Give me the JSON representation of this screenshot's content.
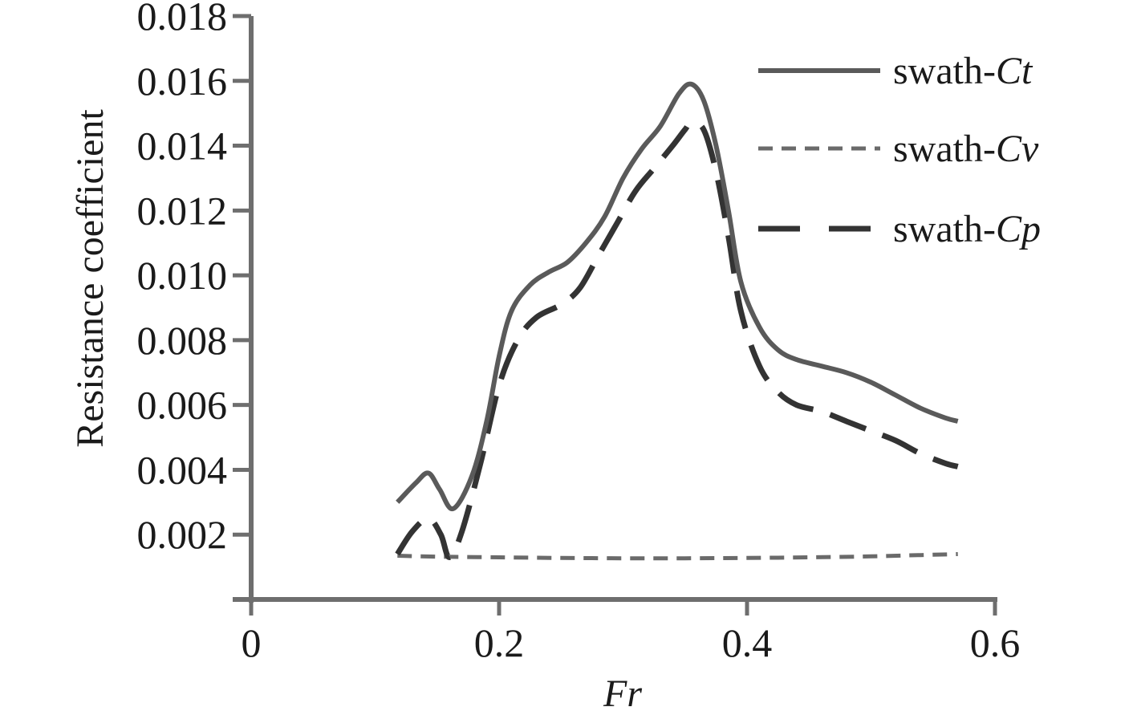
{
  "chart_data": {
    "type": "line",
    "xlabel": "Fr",
    "ylabel": "Resistance coefficient",
    "xlim": [
      0,
      0.6
    ],
    "ylim": [
      0,
      0.018
    ],
    "x_ticks": [
      "0",
      "0.2",
      "0.4",
      "0.6"
    ],
    "y_ticks": [
      "0.002",
      "0.004",
      "0.006",
      "0.008",
      "0.010",
      "0.012",
      "0.014",
      "0.016",
      "0.018"
    ],
    "grid": false,
    "legend_position": "top-right",
    "series": [
      {
        "name": "swath-Ct",
        "name_prefix": "swath-",
        "name_symbol": "Ct",
        "style": "solid",
        "color": "#5a5a5a",
        "x": [
          0.118,
          0.133,
          0.143,
          0.152,
          0.163,
          0.178,
          0.19,
          0.2,
          0.21,
          0.225,
          0.24,
          0.255,
          0.27,
          0.285,
          0.3,
          0.315,
          0.33,
          0.345,
          0.355,
          0.365,
          0.375,
          0.385,
          0.395,
          0.41,
          0.425,
          0.44,
          0.46,
          0.48,
          0.5,
          0.52,
          0.54,
          0.56,
          0.57
        ],
        "y": [
          0.003,
          0.0036,
          0.0039,
          0.0034,
          0.0028,
          0.0038,
          0.0055,
          0.0075,
          0.0089,
          0.0097,
          0.0101,
          0.0104,
          0.011,
          0.0118,
          0.013,
          0.0139,
          0.0146,
          0.0156,
          0.0159,
          0.0154,
          0.014,
          0.012,
          0.0098,
          0.0084,
          0.0077,
          0.0074,
          0.0072,
          0.007,
          0.0067,
          0.0063,
          0.0059,
          0.0056,
          0.0055
        ]
      },
      {
        "name": "swath-Cv",
        "name_prefix": "swath-",
        "name_symbol": "Cv",
        "style": "short-dash",
        "color": "#6a6a6a",
        "x": [
          0.118,
          0.15,
          0.2,
          0.25,
          0.3,
          0.35,
          0.4,
          0.45,
          0.5,
          0.54,
          0.57
        ],
        "y": [
          0.00135,
          0.00132,
          0.0013,
          0.00128,
          0.00127,
          0.00127,
          0.00128,
          0.0013,
          0.00133,
          0.00137,
          0.0014
        ]
      },
      {
        "name": "swath-Cp",
        "name_prefix": "swath-",
        "name_symbol": "Cp",
        "style": "long-dash",
        "color": "#333333",
        "x": [
          0.118,
          0.13,
          0.143,
          0.153,
          0.16,
          0.17,
          0.185,
          0.2,
          0.215,
          0.23,
          0.25,
          0.265,
          0.28,
          0.295,
          0.31,
          0.325,
          0.34,
          0.35,
          0.355,
          0.365,
          0.375,
          0.385,
          0.395,
          0.41,
          0.425,
          0.44,
          0.46,
          0.48,
          0.5,
          0.52,
          0.54,
          0.56,
          0.57
        ],
        "y": [
          0.0014,
          0.0021,
          0.0025,
          0.002,
          0.0013,
          0.0021,
          0.0042,
          0.0066,
          0.008,
          0.0087,
          0.0091,
          0.0096,
          0.0106,
          0.0116,
          0.0126,
          0.0133,
          0.014,
          0.0145,
          0.0147,
          0.0145,
          0.0132,
          0.0112,
          0.0089,
          0.0072,
          0.0064,
          0.006,
          0.0058,
          0.0055,
          0.0052,
          0.0049,
          0.0045,
          0.0042,
          0.0041
        ]
      }
    ]
  }
}
